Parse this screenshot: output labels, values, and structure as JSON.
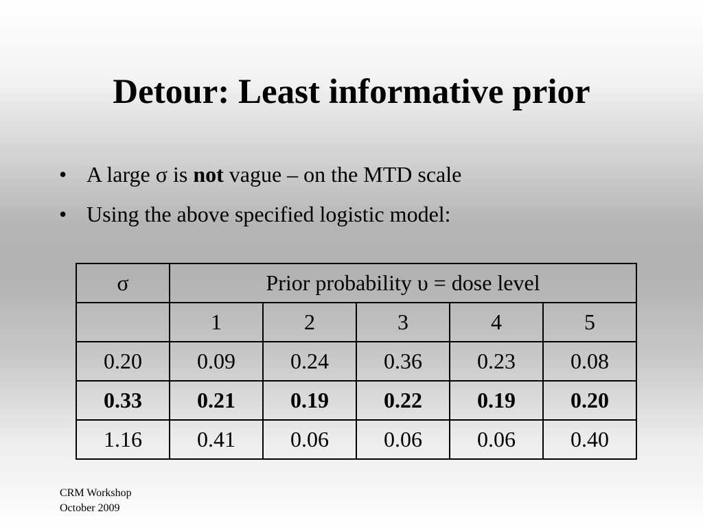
{
  "slide": {
    "title": "Detour: Least informative prior"
  },
  "bullets": [
    {
      "pre": "A large σ is ",
      "bold": "not",
      "post": " vague – on the MTD scale"
    },
    {
      "pre": "Using the above specified logistic model:",
      "bold": "",
      "post": ""
    }
  ],
  "table": {
    "header": {
      "sigma": "σ",
      "caption": "Prior probability υ = dose level"
    },
    "dose_levels": [
      "1",
      "2",
      "3",
      "4",
      "5"
    ],
    "rows": [
      {
        "sigma": "0.20",
        "values": [
          "0.09",
          "0.24",
          "0.36",
          "0.23",
          "0.08"
        ],
        "bold": false
      },
      {
        "sigma": "0.33",
        "values": [
          "0.21",
          "0.19",
          "0.22",
          "0.19",
          "0.20"
        ],
        "bold": true
      },
      {
        "sigma": "1.16",
        "values": [
          "0.41",
          "0.06",
          "0.06",
          "0.06",
          "0.40"
        ],
        "bold": false
      }
    ]
  },
  "footer": {
    "line1": "CRM Workshop",
    "line2": "October 2009"
  }
}
